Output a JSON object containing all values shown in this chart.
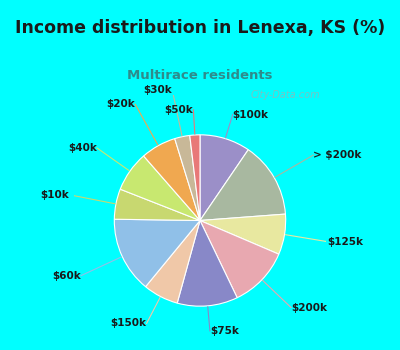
{
  "title": "Income distribution in Lenexa, KS (%)",
  "subtitle": "Multirace residents",
  "title_color": "#1a1a1a",
  "subtitle_color": "#2e8b8b",
  "background_top": "#00ffff",
  "background_chart_color": "#d8f0e0",
  "labels": [
    "$100k",
    "> $200k",
    "$125k",
    "$200k",
    "$75k",
    "$150k",
    "$60k",
    "$10k",
    "$40k",
    "$20k",
    "$30k",
    "$50k"
  ],
  "values": [
    10.0,
    15.0,
    8.0,
    12.0,
    12.0,
    7.0,
    15.0,
    6.0,
    8.0,
    7.0,
    3.0,
    2.0
  ],
  "colors": [
    "#9b8fc8",
    "#a8b8a0",
    "#e8e8a0",
    "#e8a8b0",
    "#8888c8",
    "#f0c8a8",
    "#90c0e8",
    "#c8d870",
    "#c8e870",
    "#f0a850",
    "#c8b898",
    "#e87878"
  ],
  "startangle": 90,
  "watermark": "City-Data.com"
}
